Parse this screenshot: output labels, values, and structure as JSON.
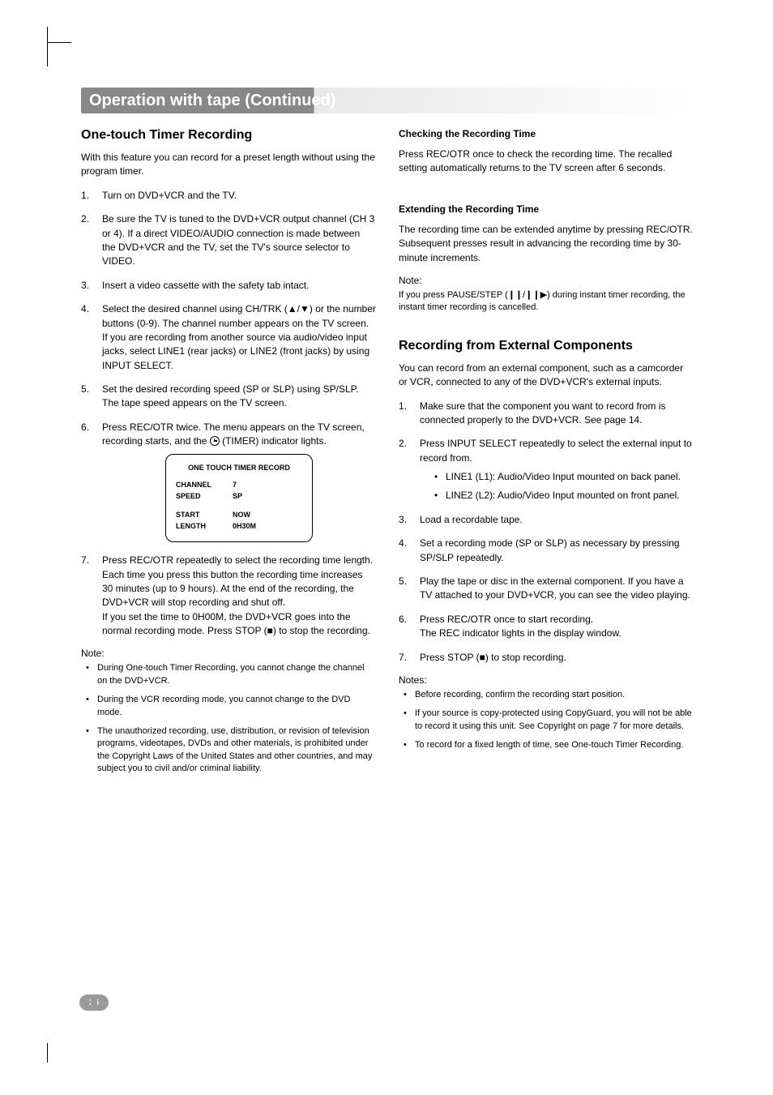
{
  "page": {
    "title": "Operation with tape (Continued)",
    "number": "26"
  },
  "left": {
    "heading": "One-touch Timer Recording",
    "intro": "With this feature you can record for a preset length without using the program timer.",
    "steps": [
      "Turn on DVD+VCR and the TV.",
      "Be sure the TV is tuned to the DVD+VCR output channel (CH 3 or 4). If a direct VIDEO/AUDIO connection is made between the DVD+VCR and the TV, set the TV's source selector to VIDEO.",
      "Insert a video cassette with the safety tab intact.",
      "Select the desired channel using CH/TRK (▲/▼) or the number buttons (0-9). The channel number appears on the TV screen. If you are recording from another source via audio/video input jacks, select LINE1 (rear jacks) or LINE2 (front jacks) by using INPUT SELECT.",
      "Set the desired recording speed (SP or SLP) using SP/SLP. The tape speed appears on the TV screen.",
      "Press REC/OTR twice. The menu appears on the TV screen, recording starts, and the     (TIMER) indicator lights.",
      "Press REC/OTR repeatedly to select the recording time length. Each time you press this button the recording time increases 30 minutes (up to 9 hours). At the end of the recording, the DVD+VCR will stop recording and shut off.\nIf you set the time to 0H00M, the DVD+VCR goes into the normal recording mode. Press STOP (■) to stop the recording."
    ],
    "osd": {
      "title": "ONE TOUCH TIMER RECORD",
      "rows": [
        {
          "k": "CHANNEL",
          "v": "7"
        },
        {
          "k": "SPEED",
          "v": "SP"
        }
      ],
      "rows2": [
        {
          "k": "START",
          "v": "NOW"
        },
        {
          "k": "LENGTH",
          "v": "0H30M"
        }
      ]
    },
    "note_head": "Note:",
    "notes": [
      "During One-touch Timer Recording, you cannot change the channel on the DVD+VCR.",
      "During the VCR recording mode, you cannot change to the DVD mode.",
      "The unauthorized recording, use, distribution, or revision of television programs, videotapes, DVDs and other materials, is prohibited under the Copyright Laws of the United States and other countries, and may subject you to civil and/or criminal liability."
    ]
  },
  "right": {
    "check_head": "Checking the Recording Time",
    "check_body": "Press REC/OTR once to check the recording time. The recalled setting automatically returns to the TV screen after 6 seconds.",
    "ext_head": "Extending the Recording Time",
    "ext_body": "The recording time can be extended anytime by pressing REC/OTR. Subsequent presses result in advancing the recording time by 30-minute increments.",
    "ext_note_head": "Note:",
    "ext_note_body": "If you press PAUSE/STEP (❙❙/❙❙▶) during instant timer recording, the instant timer recording is cancelled.",
    "rec_head": "Recording from External Components",
    "rec_intro": "You can record from an external component, such as a camcorder or VCR, connected to any of the DVD+VCR's external inputs.",
    "rec_steps": [
      {
        "t": "Make sure that the component you want to record from is connected properly to the DVD+VCR. See page 14."
      },
      {
        "t": "Press INPUT SELECT repeatedly to select the external input to record from.",
        "sub": [
          "LINE1 (L1): Audio/Video Input mounted on back panel.",
          "LINE2 (L2): Audio/Video Input mounted on front panel."
        ]
      },
      {
        "t": "Load a recordable tape."
      },
      {
        "t": "Set a recording mode (SP or SLP) as necessary by pressing SP/SLP repeatedly."
      },
      {
        "t": "Play the tape or disc in the external component. If you have a TV attached to your DVD+VCR, you can see the video playing."
      },
      {
        "t": "Press REC/OTR once to start recording.\nThe REC indicator lights in the display window."
      },
      {
        "t": "Press STOP (■) to stop recording."
      }
    ],
    "notes_head": "Notes:",
    "notes": [
      "Before recording, confirm the recording start position.",
      "If your source is copy-protected using CopyGuard, you will not be able to record it using this unit. See Copyright on page 7 for more details.",
      "To record for a fixed length of time, see One-touch Timer Recording."
    ]
  }
}
